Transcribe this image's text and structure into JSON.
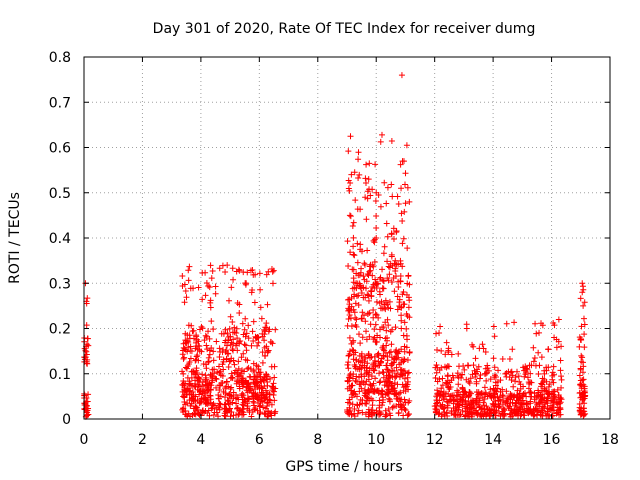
{
  "chart_data": {
    "type": "scatter",
    "title": "Day 301 of 2020, Rate Of TEC Index for receiver dumg",
    "xlabel": "GPS time / hours",
    "ylabel": "ROTI / TECUs",
    "xlim": [
      0,
      18
    ],
    "ylim": [
      0,
      0.8
    ],
    "x_ticks": [
      0,
      2,
      4,
      6,
      8,
      10,
      12,
      14,
      16,
      18
    ],
    "y_ticks": [
      0,
      0.1,
      0.2,
      0.3,
      0.4,
      0.5,
      0.6,
      0.7,
      0.8
    ],
    "x_tick_labels": [
      "0",
      "2",
      "4",
      "6",
      "8",
      "10",
      "12",
      "14",
      "16",
      "18"
    ],
    "y_tick_labels": [
      "0",
      "0.1",
      "0.2",
      "0.3",
      "0.4",
      "0.5",
      "0.6",
      "0.7",
      "0.8"
    ],
    "grid": true,
    "marker": "+",
    "color": "#ff0000",
    "series": [
      {
        "name": "ROTI",
        "clusters": [
          {
            "x_start": 0.0,
            "x_end": 0.15,
            "count": 50,
            "seed": 11,
            "bands": [
              [
                0.0,
                0.06,
                0.45
              ],
              [
                0.12,
                0.18,
                0.35
              ],
              [
                0.18,
                0.3,
                0.2
              ]
            ]
          },
          {
            "x_start": 3.35,
            "x_end": 6.55,
            "count": 700,
            "seed": 23,
            "bands": [
              [
                0.0,
                0.1,
                0.6
              ],
              [
                0.1,
                0.2,
                0.28
              ],
              [
                0.2,
                0.34,
                0.12
              ]
            ]
          },
          {
            "x_start": 9.0,
            "x_end": 11.15,
            "count": 650,
            "seed": 37,
            "bands": [
              [
                0.0,
                0.15,
                0.52
              ],
              [
                0.15,
                0.35,
                0.34
              ],
              [
                0.35,
                0.55,
                0.12
              ],
              [
                0.55,
                0.63,
                0.02
              ]
            ]
          },
          {
            "x_start": 12.0,
            "x_end": 16.35,
            "count": 680,
            "seed": 41,
            "bands": [
              [
                0.0,
                0.06,
                0.7
              ],
              [
                0.06,
                0.12,
                0.24
              ],
              [
                0.12,
                0.22,
                0.06
              ]
            ]
          },
          {
            "x_start": 16.95,
            "x_end": 17.15,
            "count": 70,
            "seed": 53,
            "bands": [
              [
                0.0,
                0.1,
                0.65
              ],
              [
                0.1,
                0.2,
                0.25
              ],
              [
                0.2,
                0.3,
                0.1
              ]
            ]
          }
        ],
        "outliers": [
          {
            "x": 10.88,
            "y": 0.76
          },
          {
            "x": 9.12,
            "y": 0.625
          },
          {
            "x": 11.05,
            "y": 0.605
          },
          {
            "x": 10.95,
            "y": 0.57
          },
          {
            "x": 9.15,
            "y": 0.54
          },
          {
            "x": 10.85,
            "y": 0.51
          },
          {
            "x": 10.0,
            "y": 0.5
          },
          {
            "x": 9.62,
            "y": 0.49
          },
          {
            "x": 9.1,
            "y": 0.45
          },
          {
            "x": 9.45,
            "y": 0.375
          },
          {
            "x": 10.0,
            "y": 0.4
          },
          {
            "x": 4.9,
            "y": 0.34
          },
          {
            "x": 5.3,
            "y": 0.33
          },
          {
            "x": 5.55,
            "y": 0.3
          },
          {
            "x": 12.15,
            "y": 0.19
          },
          {
            "x": 17.05,
            "y": 0.3
          },
          {
            "x": 17.05,
            "y": 0.28
          },
          {
            "x": 17.08,
            "y": 0.25
          },
          {
            "x": 0.05,
            "y": 0.3
          },
          {
            "x": 0.08,
            "y": 0.26
          }
        ]
      }
    ]
  }
}
